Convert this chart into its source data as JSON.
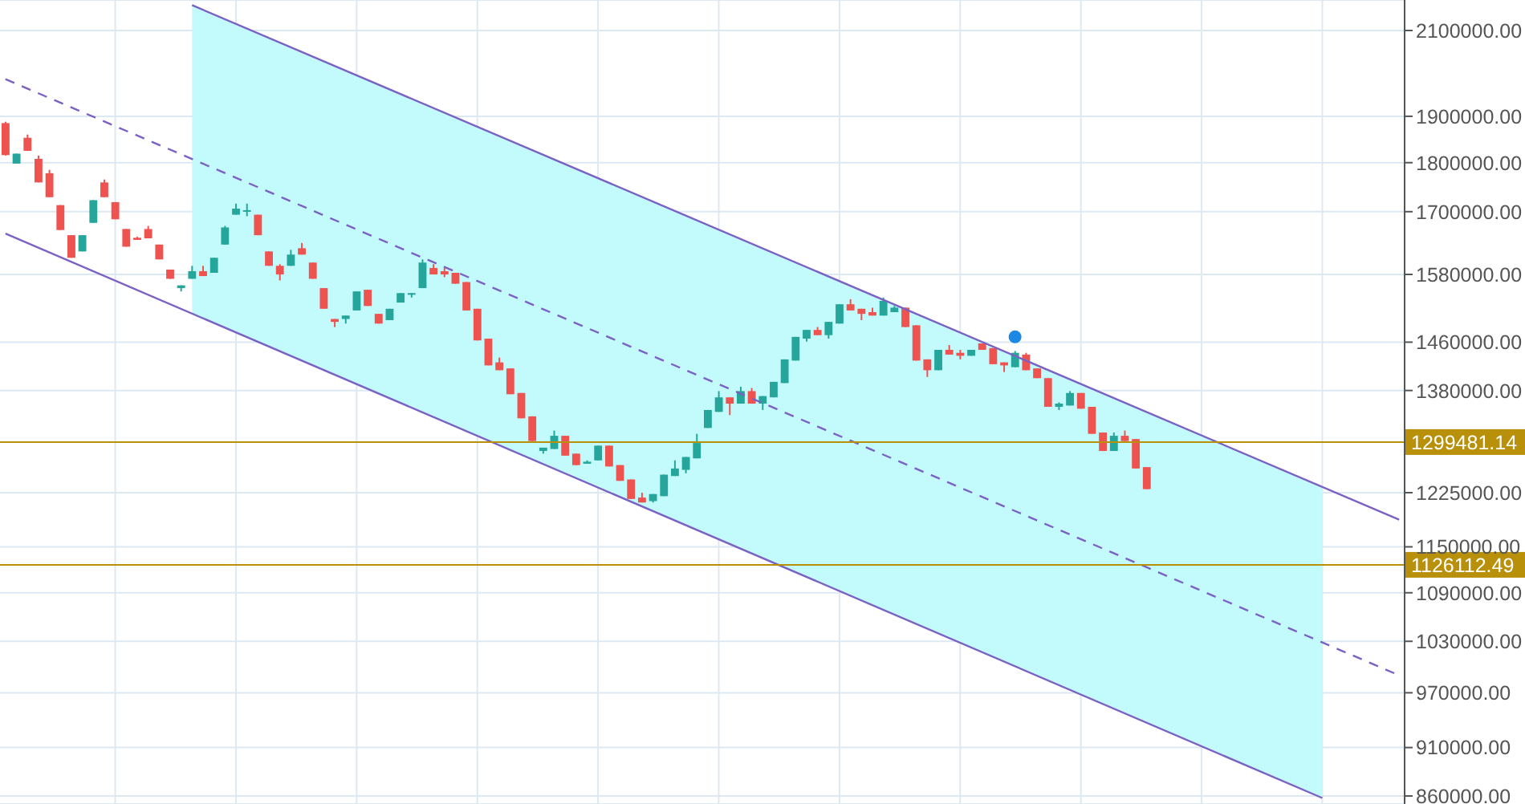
{
  "chart_data": {
    "type": "candlestick",
    "categories": [
      null,
      null,
      null,
      null,
      null,
      null,
      null,
      null,
      null,
      null,
      null,
      null,
      null,
      null,
      null,
      null,
      null,
      null,
      null,
      null,
      null,
      null,
      null,
      null,
      null,
      null,
      null,
      null,
      null,
      null,
      null,
      null,
      null,
      null,
      null,
      null,
      null,
      null,
      null,
      null,
      null,
      null,
      null,
      null,
      null,
      null,
      null,
      null,
      null,
      null,
      null,
      null,
      null,
      null,
      null,
      null,
      null,
      null,
      null,
      null,
      null,
      null,
      null,
      null,
      null,
      null,
      null,
      null,
      null,
      null,
      null,
      null,
      null,
      null,
      null,
      null,
      null,
      null,
      null,
      null,
      null,
      null,
      null,
      null,
      null,
      null,
      null,
      null,
      null,
      null,
      null,
      null,
      null,
      null,
      null,
      null,
      null,
      null,
      null,
      null,
      null,
      null,
      null,
      null,
      null,
      null,
      null,
      null,
      null,
      null,
      null,
      null,
      null,
      null,
      null,
      null,
      null,
      null,
      null,
      null,
      null,
      null,
      null,
      null,
      null,
      null,
      null,
      null
    ],
    "ohlc": [
      [
        1885000,
        1888000,
        1815000,
        1816000
      ],
      [
        1798000,
        1819000,
        1798000,
        1819000
      ],
      [
        1853000,
        1860000,
        1825000,
        1825000
      ],
      [
        1808000,
        1815000,
        1759000,
        1759000
      ],
      [
        1778000,
        1785000,
        1729000,
        1729000
      ],
      [
        1713000,
        1713000,
        1664000,
        1664000
      ],
      [
        1654000,
        1654000,
        1611000,
        1611000
      ],
      [
        1623000,
        1654000,
        1623000,
        1654000
      ],
      [
        1678000,
        1723000,
        1678000,
        1723000
      ],
      [
        1759000,
        1765000,
        1729000,
        1729000
      ],
      [
        1719000,
        1719000,
        1685000,
        1685000
      ],
      [
        1666000,
        1666000,
        1632000,
        1632000
      ],
      [
        1649000,
        1651000,
        1645000,
        1645000
      ],
      [
        1666000,
        1672000,
        1648000,
        1648000
      ],
      [
        1636000,
        1636000,
        1608000,
        1608000
      ],
      [
        1589000,
        1589000,
        1572000,
        1572000
      ],
      [
        1555000,
        1560000,
        1549000,
        1560000
      ],
      [
        1572000,
        1596000,
        1572000,
        1586000
      ],
      [
        1586000,
        1596000,
        1577000,
        1577000
      ],
      [
        1583000,
        1611000,
        1583000,
        1611000
      ],
      [
        1636000,
        1672000,
        1636000,
        1669000
      ],
      [
        1694000,
        1716000,
        1694000,
        1706000
      ],
      [
        1700000,
        1716000,
        1691000,
        1703000
      ],
      [
        1694000,
        1694000,
        1654000,
        1654000
      ],
      [
        1623000,
        1623000,
        1596000,
        1596000
      ],
      [
        1596000,
        1599000,
        1569000,
        1580000
      ],
      [
        1596000,
        1626000,
        1596000,
        1617000
      ],
      [
        1629000,
        1639000,
        1617000,
        1617000
      ],
      [
        1602000,
        1602000,
        1572000,
        1572000
      ],
      [
        1555000,
        1555000,
        1518000,
        1518000
      ],
      [
        1500000,
        1500000,
        1486000,
        1495000
      ],
      [
        1500000,
        1506000,
        1492000,
        1506000
      ],
      [
        1515000,
        1549000,
        1515000,
        1549000
      ],
      [
        1552000,
        1552000,
        1523000,
        1523000
      ],
      [
        1509000,
        1509000,
        1492000,
        1492000
      ],
      [
        1498000,
        1518000,
        1498000,
        1518000
      ],
      [
        1529000,
        1546000,
        1529000,
        1546000
      ],
      [
        1543000,
        1546000,
        1538000,
        1546000
      ],
      [
        1555000,
        1608000,
        1555000,
        1602000
      ],
      [
        1592000,
        1599000,
        1580000,
        1580000
      ],
      [
        1586000,
        1592000,
        1575000,
        1580000
      ],
      [
        1583000,
        1583000,
        1563000,
        1563000
      ],
      [
        1566000,
        1566000,
        1515000,
        1515000
      ],
      [
        1518000,
        1518000,
        1463000,
        1463000
      ],
      [
        1466000,
        1466000,
        1421000,
        1421000
      ],
      [
        1426000,
        1434000,
        1413000,
        1413000
      ],
      [
        1416000,
        1416000,
        1374000,
        1374000
      ],
      [
        1376000,
        1376000,
        1336000,
        1336000
      ],
      [
        1339000,
        1339000,
        1301000,
        1301000
      ],
      [
        1286000,
        1291000,
        1282000,
        1291000
      ],
      [
        1289000,
        1317000,
        1289000,
        1309000
      ],
      [
        1309000,
        1309000,
        1279000,
        1279000
      ],
      [
        1282000,
        1282000,
        1265000,
        1265000
      ],
      [
        1267000,
        1272000,
        1267000,
        1270000
      ],
      [
        1272000,
        1294000,
        1272000,
        1294000
      ],
      [
        1294000,
        1294000,
        1263000,
        1263000
      ],
      [
        1265000,
        1265000,
        1242000,
        1242000
      ],
      [
        1244000,
        1244000,
        1216000,
        1216000
      ],
      [
        1218000,
        1225000,
        1211000,
        1211000
      ],
      [
        1213000,
        1223000,
        1211000,
        1223000
      ],
      [
        1220000,
        1251000,
        1220000,
        1251000
      ],
      [
        1249000,
        1272000,
        1249000,
        1260000
      ],
      [
        1258000,
        1277000,
        1253000,
        1277000
      ],
      [
        1275000,
        1312000,
        1275000,
        1298000
      ],
      [
        1321000,
        1349000,
        1321000,
        1349000
      ],
      [
        1346000,
        1379000,
        1346000,
        1369000
      ],
      [
        1369000,
        1369000,
        1341000,
        1359000
      ],
      [
        1359000,
        1386000,
        1359000,
        1379000
      ],
      [
        1379000,
        1384000,
        1359000,
        1359000
      ],
      [
        1359000,
        1371000,
        1349000,
        1371000
      ],
      [
        1369000,
        1394000,
        1369000,
        1394000
      ],
      [
        1392000,
        1431000,
        1392000,
        1431000
      ],
      [
        1429000,
        1469000,
        1429000,
        1469000
      ],
      [
        1466000,
        1481000,
        1461000,
        1481000
      ],
      [
        1481000,
        1486000,
        1472000,
        1472000
      ],
      [
        1472000,
        1495000,
        1466000,
        1495000
      ],
      [
        1492000,
        1526000,
        1492000,
        1526000
      ],
      [
        1526000,
        1535000,
        1515000,
        1515000
      ],
      [
        1518000,
        1518000,
        1498000,
        1509000
      ],
      [
        1512000,
        1520000,
        1506000,
        1506000
      ],
      [
        1506000,
        1538000,
        1506000,
        1532000
      ],
      [
        1512000,
        1523000,
        1512000,
        1520000
      ],
      [
        1520000,
        1520000,
        1486000,
        1486000
      ],
      [
        1489000,
        1489000,
        1429000,
        1429000
      ],
      [
        1431000,
        1431000,
        1402000,
        1413000
      ],
      [
        1413000,
        1447000,
        1413000,
        1447000
      ],
      [
        1447000,
        1455000,
        1439000,
        1439000
      ],
      [
        1442000,
        1447000,
        1431000,
        1437000
      ],
      [
        1437000,
        1447000,
        1437000,
        1447000
      ],
      [
        1458000,
        1458000,
        1447000,
        1447000
      ],
      [
        1450000,
        1450000,
        1423000,
        1423000
      ],
      [
        1426000,
        1426000,
        1410000,
        1421000
      ],
      [
        1418000,
        1445000,
        1418000,
        1442000
      ],
      [
        1439000,
        1442000,
        1413000,
        1413000
      ],
      [
        1416000,
        1416000,
        1400000,
        1400000
      ],
      [
        1400000,
        1400000,
        1354000,
        1354000
      ],
      [
        1354000,
        1361000,
        1349000,
        1359000
      ],
      [
        1356000,
        1379000,
        1356000,
        1376000
      ],
      [
        1376000,
        1376000,
        1351000,
        1351000
      ],
      [
        1354000,
        1354000,
        1312000,
        1312000
      ],
      [
        1314000,
        1314000,
        1286000,
        1286000
      ],
      [
        1286000,
        1314000,
        1286000,
        1309000
      ],
      [
        1309000,
        1317000,
        1301000,
        1301000
      ],
      [
        1304000,
        1304000,
        1260000,
        1260000
      ],
      [
        1262000,
        1262000,
        1230000,
        1230000
      ],
      null,
      null,
      null,
      null,
      null,
      null,
      null,
      null,
      null,
      null,
      null,
      null,
      null,
      null,
      null,
      null,
      null,
      null,
      null,
      null,
      null,
      null,
      null
    ],
    "colors": [
      "#ef5350",
      "#26a69a",
      "#ef5350",
      "#ef5350",
      "#ef5350",
      "#ef5350",
      "#ef5350",
      "#26a69a",
      "#26a69a",
      "#ef5350",
      "#ef5350",
      "#ef5350",
      "#ef5350",
      "#ef5350",
      "#ef5350",
      "#ef5350",
      "#26a69a",
      "#26a69a",
      "#ef5350",
      "#26a69a",
      "#26a69a",
      "#26a69a",
      "#26a69a",
      "#ef5350",
      "#ef5350",
      "#ef5350",
      "#26a69a",
      "#ef5350",
      "#ef5350",
      "#ef5350",
      "#ef5350",
      "#26a69a",
      "#26a69a",
      "#ef5350",
      "#ef5350",
      "#26a69a",
      "#26a69a",
      "#26a69a",
      "#26a69a",
      "#ef5350",
      "#ef5350",
      "#ef5350",
      "#ef5350",
      "#ef5350",
      "#ef5350",
      "#ef5350",
      "#ef5350",
      "#ef5350",
      "#ef5350",
      "#26a69a",
      "#26a69a",
      "#ef5350",
      "#ef5350",
      "#26a69a",
      "#26a69a",
      "#ef5350",
      "#ef5350",
      "#ef5350",
      "#ef5350",
      "#26a69a",
      "#26a69a",
      "#26a69a",
      "#26a69a",
      "#26a69a",
      "#26a69a",
      "#26a69a",
      "#ef5350",
      "#26a69a",
      "#ef5350",
      "#26a69a",
      "#26a69a",
      "#26a69a",
      "#26a69a",
      "#26a69a",
      "#ef5350",
      "#26a69a",
      "#26a69a",
      "#ef5350",
      "#ef5350",
      "#ef5350",
      "#26a69a",
      "#26a69a",
      "#ef5350",
      "#ef5350",
      "#ef5350",
      "#26a69a",
      "#ef5350",
      "#ef5350",
      "#26a69a",
      "#ef5350",
      "#ef5350",
      "#ef5350",
      "#26a69a",
      "#ef5350",
      "#ef5350",
      "#ef5350",
      "#26a69a",
      "#26a69a",
      "#ef5350",
      "#ef5350",
      "#ef5350",
      "#26a69a",
      "#ef5350",
      "#ef5350",
      "#ef5350",
      null,
      null,
      null,
      null,
      null,
      null,
      null,
      null,
      null,
      null,
      null,
      null,
      null,
      null,
      null,
      null,
      null,
      null,
      null,
      null,
      null,
      null,
      null
    ],
    "series": [
      {
        "type": "line",
        "color": "#7b61c4",
        "line_style": "dashed",
        "values": [
          1984000,
          null,
          null,
          null,
          null,
          null,
          null,
          null,
          null,
          null,
          null,
          null,
          null,
          null,
          null,
          null,
          null,
          null,
          null,
          null,
          null,
          null,
          null,
          null,
          null,
          null,
          null,
          null,
          null,
          null,
          null,
          null,
          null,
          null,
          null,
          null,
          null,
          null,
          null,
          null,
          null,
          null,
          null,
          null,
          null,
          null,
          null,
          null,
          null,
          null,
          null,
          null,
          null,
          null,
          null,
          null,
          null,
          null,
          null,
          null,
          null,
          null,
          null,
          null,
          null,
          null,
          null,
          null,
          null,
          null,
          null,
          null,
          null,
          null,
          null,
          null,
          null,
          null,
          null,
          null,
          null,
          null,
          null,
          null,
          null,
          null,
          null,
          null,
          null,
          null,
          null,
          null,
          null,
          null,
          null,
          null,
          null,
          null,
          null,
          null,
          null,
          null,
          null,
          null,
          null,
          null,
          null,
          null,
          null,
          null,
          null,
          null,
          null,
          null,
          null,
          null,
          null,
          null,
          null,
          null,
          null,
          null,
          null,
          null,
          null,
          null,
          null,
          990000
        ],
        "lower": [
          null,
          null,
          null,
          null,
          null,
          null,
          null,
          null,
          null,
          null,
          null,
          null,
          null,
          null,
          null,
          null,
          null,
          1510000,
          null,
          null,
          null,
          null,
          null,
          null,
          null,
          null,
          null,
          null,
          null,
          null,
          null,
          null,
          null,
          null,
          null,
          null,
          null,
          null,
          null,
          null,
          null,
          null,
          null,
          null,
          null,
          null,
          null,
          null,
          null,
          null,
          null,
          null,
          null,
          null,
          null,
          null,
          null,
          null,
          null,
          null,
          null,
          null,
          null,
          null,
          null,
          null,
          null,
          null,
          null,
          null,
          null,
          null,
          null,
          null,
          null,
          null,
          null,
          null,
          null,
          null,
          null,
          null,
          null,
          null,
          null,
          null,
          null,
          null,
          null,
          null,
          null,
          null,
          null,
          null,
          null,
          null,
          null,
          null,
          null,
          null,
          null,
          null,
          null,
          null,
          null,
          null,
          null,
          null,
          null,
          null,
          null,
          null,
          null,
          null,
          null,
          null,
          null,
          null,
          null,
          null,
          858000,
          null,
          null,
          null,
          null,
          null,
          null,
          null
        ],
        "upper": [
          null,
          null,
          null,
          null,
          null,
          null,
          null,
          null,
          null,
          null,
          null,
          null,
          null,
          null,
          null,
          null,
          null,
          2163000,
          null,
          null,
          null,
          null,
          null,
          null,
          null,
          null,
          null,
          null,
          null,
          null,
          null,
          null,
          null,
          null,
          null,
          null,
          null,
          null,
          null,
          null,
          null,
          null,
          null,
          null,
          null,
          null,
          null,
          null,
          null,
          null,
          null,
          null,
          null,
          null,
          null,
          null,
          null,
          null,
          null,
          null,
          null,
          null,
          null,
          null,
          null,
          null,
          null,
          null,
          null,
          null,
          null,
          null,
          null,
          null,
          null,
          null,
          null,
          null,
          null,
          null,
          null,
          null,
          null,
          null,
          null,
          null,
          null,
          null,
          null,
          null,
          null,
          null,
          null,
          null,
          null,
          null,
          null,
          null,
          null,
          null,
          null,
          null,
          null,
          null,
          null,
          null,
          null,
          null,
          null,
          null,
          null,
          null,
          null,
          null,
          null,
          null,
          null,
          null,
          null,
          null,
          1233000,
          null,
          null,
          null,
          null,
          null,
          null,
          null
        ]
      },
      {
        "type": "line",
        "color": "#7b61c4",
        "line_style": "solid",
        "values": [
          null,
          null,
          null,
          null,
          null,
          null,
          null,
          null,
          null,
          null,
          null,
          null,
          null,
          null,
          null,
          null,
          null,
          2163000,
          null,
          null,
          null,
          null,
          null,
          null,
          null,
          null,
          null,
          null,
          null,
          null,
          null,
          null,
          null,
          null,
          null,
          null,
          null,
          null,
          null,
          null,
          null,
          null,
          null,
          null,
          null,
          null,
          null,
          null,
          null,
          null,
          null,
          null,
          null,
          null,
          null,
          null,
          null,
          null,
          null,
          null,
          null,
          null,
          null,
          null,
          null,
          null,
          null,
          null,
          null,
          null,
          null,
          null,
          null,
          null,
          null,
          null,
          null,
          null,
          null,
          null,
          null,
          null,
          null,
          null,
          null,
          null,
          null,
          null,
          null,
          null,
          null,
          null,
          null,
          null,
          null,
          null,
          null,
          null,
          null,
          null,
          null,
          null,
          null,
          null,
          null,
          null,
          null,
          null,
          null,
          null,
          null,
          null,
          null,
          null,
          null,
          null,
          null,
          null,
          null,
          null,
          null,
          null,
          null,
          null,
          null,
          null,
          null,
          1187000
        ]
      },
      {
        "type": "line",
        "color": "#7b61c4",
        "line_style": "solid",
        "values": [
          1657000,
          null,
          null,
          null,
          null,
          null,
          null,
          null,
          null,
          null,
          null,
          null,
          null,
          null,
          null,
          null,
          null,
          null,
          null,
          null,
          null,
          null,
          null,
          null,
          null,
          null,
          null,
          null,
          null,
          null,
          null,
          null,
          null,
          null,
          null,
          null,
          null,
          null,
          null,
          null,
          null,
          null,
          null,
          null,
          null,
          null,
          null,
          null,
          null,
          null,
          null,
          null,
          null,
          null,
          null,
          null,
          null,
          null,
          null,
          null,
          null,
          null,
          null,
          null,
          null,
          null,
          null,
          null,
          null,
          null,
          null,
          null,
          null,
          null,
          null,
          null,
          null,
          null,
          null,
          null,
          null,
          null,
          null,
          null,
          null,
          null,
          null,
          null,
          null,
          null,
          null,
          null,
          null,
          null,
          null,
          null,
          null,
          null,
          null,
          null,
          null,
          null,
          null,
          null,
          null,
          null,
          null,
          null,
          null,
          null,
          null,
          null,
          null,
          null,
          null,
          null,
          null,
          null,
          null,
          null,
          858000,
          null,
          null,
          null,
          null,
          null,
          null,
          null
        ]
      },
      {
        "type": "scatter",
        "color": "#1e88e5",
        "values": [
          null,
          null,
          null,
          null,
          null,
          null,
          null,
          null,
          null,
          null,
          null,
          null,
          null,
          null,
          null,
          null,
          null,
          null,
          null,
          null,
          null,
          null,
          null,
          null,
          null,
          null,
          null,
          null,
          null,
          null,
          null,
          null,
          null,
          null,
          null,
          null,
          null,
          null,
          null,
          null,
          null,
          null,
          null,
          null,
          null,
          null,
          null,
          null,
          null,
          null,
          null,
          null,
          null,
          null,
          null,
          null,
          null,
          null,
          null,
          null,
          null,
          null,
          null,
          null,
          null,
          null,
          null,
          null,
          null,
          null,
          null,
          null,
          null,
          null,
          null,
          null,
          null,
          null,
          null,
          null,
          null,
          null,
          null,
          null,
          null,
          null,
          null,
          null,
          null,
          null,
          null,
          null,
          1469000,
          null,
          null,
          null,
          null,
          null,
          null,
          null,
          null,
          null,
          null,
          null,
          null,
          null,
          null,
          null,
          null,
          null,
          null,
          null,
          null,
          null,
          null,
          null,
          null,
          null,
          null,
          null,
          null,
          null,
          null,
          null,
          null,
          null,
          null,
          null
        ]
      }
    ],
    "ylim": [
      852000,
      2176000
    ],
    "yticks": [
      {
        "value": 860000,
        "label": "860000.00"
      },
      {
        "value": 910000,
        "label": "910000.00"
      },
      {
        "value": 970000,
        "label": "970000.00"
      },
      {
        "value": 1030000,
        "label": "1030000.00"
      },
      {
        "value": 1090000,
        "label": "1090000.00"
      },
      {
        "value": 1150000,
        "label": "1150000.00"
      },
      {
        "value": 1225000,
        "label": "1225000.00"
      },
      {
        "value": 1380000,
        "label": "1380000.00"
      },
      {
        "value": 1460000,
        "label": "1460000.00"
      },
      {
        "value": 1580000,
        "label": "1580000.00"
      },
      {
        "value": 1700000,
        "label": "1700000.00"
      },
      {
        "value": 1800000,
        "label": "1800000.00"
      },
      {
        "value": 1900000,
        "label": "1900000.00"
      },
      {
        "value": 2100000,
        "label": "2100000.00"
      }
    ],
    "log": true,
    "grid": true,
    "tick_labels": "y",
    "ref_lines": [
      {
        "axis": "y",
        "value": 1299481.14,
        "label": "1299481.14",
        "color": "#b8900a"
      },
      {
        "axis": "y",
        "value": 1126112.49,
        "label": "1126112.49",
        "color": "#b8900a"
      }
    ]
  }
}
